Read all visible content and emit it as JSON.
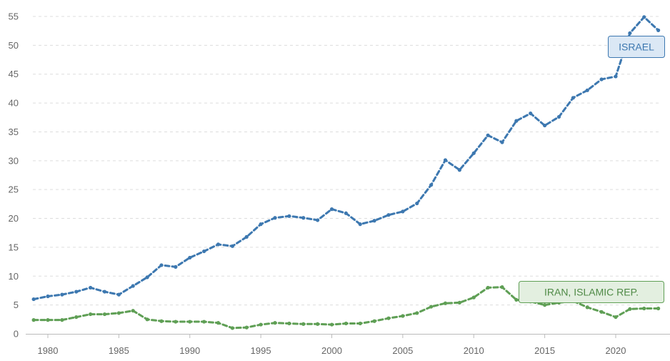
{
  "chart_data": {
    "type": "line",
    "title": "",
    "xlabel": "",
    "ylabel": "",
    "xlim": [
      1979,
      2023
    ],
    "ylim": [
      0,
      55
    ],
    "y_ticks": [
      "0",
      "5",
      "10",
      "15",
      "20",
      "25",
      "30",
      "35",
      "40",
      "45",
      "50",
      "55"
    ],
    "x_ticks": [
      "1980",
      "1985",
      "1990",
      "1995",
      "2000",
      "2005",
      "2010",
      "2015",
      "2020"
    ],
    "grid": "horizontal dashed",
    "x": [
      1979,
      1980,
      1981,
      1982,
      1983,
      1984,
      1985,
      1986,
      1987,
      1988,
      1989,
      1990,
      1991,
      1992,
      1993,
      1994,
      1995,
      1996,
      1997,
      1998,
      1999,
      2000,
      2001,
      2002,
      2003,
      2004,
      2005,
      2006,
      2007,
      2008,
      2009,
      2010,
      2011,
      2012,
      2013,
      2014,
      2015,
      2016,
      2017,
      2018,
      2019,
      2020,
      2021,
      2022,
      2023
    ],
    "series": [
      {
        "name": "ISRAEL",
        "color": "#3d78b0",
        "label_fill": "#dbe8f5",
        "label_text_color": "#3d78b0",
        "values": [
          6.0,
          6.5,
          6.8,
          7.3,
          8.0,
          7.3,
          6.8,
          8.3,
          9.8,
          11.9,
          11.6,
          13.2,
          14.3,
          15.5,
          15.2,
          16.8,
          19.0,
          20.1,
          20.4,
          20.1,
          19.7,
          21.6,
          20.9,
          19.0,
          19.6,
          20.6,
          21.2,
          22.6,
          25.8,
          30.1,
          28.4,
          31.3,
          34.4,
          33.2,
          36.9,
          38.2,
          36.1,
          37.6,
          40.9,
          42.2,
          44.1,
          44.6,
          52.1,
          54.9,
          52.6
        ]
      },
      {
        "name": "IRAN, ISLAMIC REP.",
        "color": "#5f9f55",
        "label_fill": "#e3efe0",
        "label_text_color": "#4f8a46",
        "values": [
          2.4,
          2.4,
          2.4,
          2.9,
          3.4,
          3.4,
          3.6,
          4.0,
          2.5,
          2.2,
          2.1,
          2.1,
          2.1,
          1.9,
          1.0,
          1.1,
          1.6,
          1.9,
          1.8,
          1.7,
          1.7,
          1.6,
          1.8,
          1.8,
          2.2,
          2.7,
          3.1,
          3.6,
          4.7,
          5.3,
          5.4,
          6.3,
          8.0,
          8.1,
          5.9,
          5.6,
          5.0,
          5.4,
          5.7,
          4.6,
          3.8,
          2.9,
          4.3,
          4.4,
          4.4
        ]
      }
    ]
  }
}
